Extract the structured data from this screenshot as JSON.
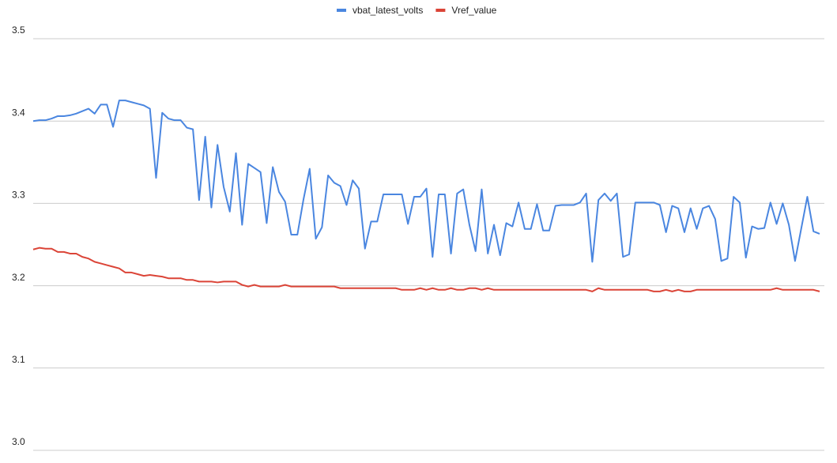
{
  "chart_data": {
    "type": "line",
    "ylim": [
      3.0,
      3.5
    ],
    "yticks": [
      {
        "value": 3,
        "label": "3.0"
      },
      3.1,
      3.2,
      3.3,
      3.4,
      3.5
    ],
    "grid": true,
    "legend": "top",
    "series": [
      {
        "name": "vbat_latest_volts",
        "color": "#4a86e0",
        "values": [
          3.4,
          3.401,
          3.401,
          3.403,
          3.406,
          3.406,
          3.407,
          3.409,
          3.412,
          3.415,
          3.409,
          3.42,
          3.42,
          3.393,
          3.425,
          3.425,
          3.423,
          3.421,
          3.419,
          3.415,
          3.331,
          3.41,
          3.403,
          3.401,
          3.401,
          3.392,
          3.39,
          3.304,
          3.381,
          3.295,
          3.371,
          3.32,
          3.29,
          3.361,
          3.274,
          3.348,
          3.343,
          3.338,
          3.276,
          3.344,
          3.314,
          3.302,
          3.262,
          3.262,
          3.305,
          3.342,
          3.257,
          3.271,
          3.334,
          3.325,
          3.321,
          3.298,
          3.328,
          3.318,
          3.245,
          3.278,
          3.278,
          3.311,
          3.311,
          3.311,
          3.311,
          3.275,
          3.308,
          3.308,
          3.318,
          3.235,
          3.311,
          3.311,
          3.239,
          3.312,
          3.317,
          3.274,
          3.242,
          3.317,
          3.239,
          3.274,
          3.237,
          3.276,
          3.272,
          3.301,
          3.269,
          3.269,
          3.299,
          3.267,
          3.267,
          3.297,
          3.298,
          3.298,
          3.298,
          3.301,
          3.312,
          3.229,
          3.304,
          3.312,
          3.303,
          3.312,
          3.235,
          3.238,
          3.301,
          3.301,
          3.301,
          3.301,
          3.298,
          3.265,
          3.297,
          3.294,
          3.265,
          3.294,
          3.269,
          3.294,
          3.297,
          3.281,
          3.23,
          3.233,
          3.308,
          3.301,
          3.234,
          3.272,
          3.269,
          3.27,
          3.301,
          3.275,
          3.3,
          3.274,
          3.23,
          3.269,
          3.308,
          3.266,
          3.263
        ]
      },
      {
        "name": "Vref_value",
        "color": "#db4437",
        "values": [
          3.244,
          3.246,
          3.245,
          3.245,
          3.241,
          3.241,
          3.239,
          3.239,
          3.235,
          3.233,
          3.229,
          3.227,
          3.225,
          3.223,
          3.221,
          3.216,
          3.216,
          3.214,
          3.212,
          3.213,
          3.212,
          3.211,
          3.209,
          3.209,
          3.209,
          3.207,
          3.207,
          3.205,
          3.205,
          3.205,
          3.204,
          3.205,
          3.205,
          3.205,
          3.201,
          3.199,
          3.201,
          3.199,
          3.199,
          3.199,
          3.199,
          3.201,
          3.199,
          3.199,
          3.199,
          3.199,
          3.199,
          3.199,
          3.199,
          3.199,
          3.197,
          3.197,
          3.197,
          3.197,
          3.197,
          3.197,
          3.197,
          3.197,
          3.197,
          3.197,
          3.195,
          3.195,
          3.195,
          3.197,
          3.195,
          3.197,
          3.195,
          3.195,
          3.197,
          3.195,
          3.195,
          3.197,
          3.197,
          3.195,
          3.197,
          3.195,
          3.195,
          3.195,
          3.195,
          3.195,
          3.195,
          3.195,
          3.195,
          3.195,
          3.195,
          3.195,
          3.195,
          3.195,
          3.195,
          3.195,
          3.195,
          3.193,
          3.197,
          3.195,
          3.195,
          3.195,
          3.195,
          3.195,
          3.195,
          3.195,
          3.195,
          3.193,
          3.193,
          3.195,
          3.193,
          3.195,
          3.193,
          3.193,
          3.195,
          3.195,
          3.195,
          3.195,
          3.195,
          3.195,
          3.195,
          3.195,
          3.195,
          3.195,
          3.195,
          3.195,
          3.195,
          3.197,
          3.195,
          3.195,
          3.195,
          3.195,
          3.195,
          3.195,
          3.193
        ]
      }
    ]
  }
}
